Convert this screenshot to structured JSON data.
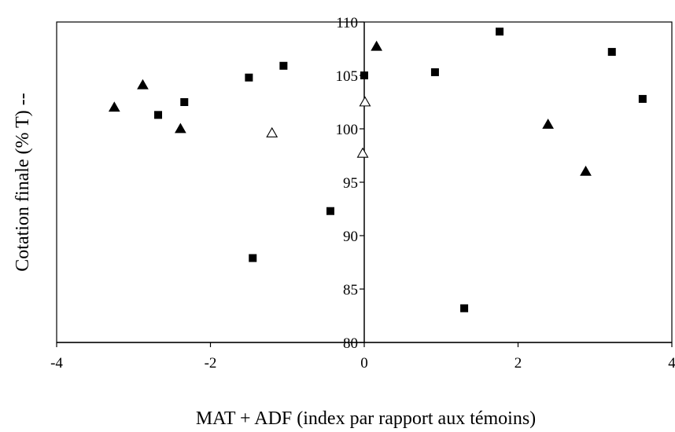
{
  "chart_data": {
    "type": "scatter",
    "xlabel": "MAT + ADF (index par rapport aux témoins)",
    "ylabel": "Cotation finale (% T)  --",
    "xlim": [
      -4,
      4
    ],
    "ylim": [
      80,
      110
    ],
    "x_ticks": [
      -4,
      -2,
      0,
      2,
      4
    ],
    "y_ticks": [
      80,
      85,
      90,
      95,
      100,
      105,
      110
    ],
    "grid": false,
    "legend": "none",
    "series": [
      {
        "marker": "square-filled",
        "color": "#000000",
        "points": [
          {
            "x": -2.68,
            "y": 101.3
          },
          {
            "x": -2.34,
            "y": 102.5
          },
          {
            "x": -1.5,
            "y": 104.8
          },
          {
            "x": -1.05,
            "y": 105.9
          },
          {
            "x": -1.45,
            "y": 87.9
          },
          {
            "x": -0.44,
            "y": 92.3
          },
          {
            "x": 0.0,
            "y": 105.0
          },
          {
            "x": 0.92,
            "y": 105.3
          },
          {
            "x": 1.3,
            "y": 83.2
          },
          {
            "x": 1.76,
            "y": 109.1
          },
          {
            "x": 3.22,
            "y": 107.2
          },
          {
            "x": 3.62,
            "y": 102.8
          }
        ]
      },
      {
        "marker": "triangle-filled",
        "color": "#000000",
        "points": [
          {
            "x": -3.25,
            "y": 102.0
          },
          {
            "x": -2.88,
            "y": 104.1
          },
          {
            "x": -2.39,
            "y": 100.0
          },
          {
            "x": 0.16,
            "y": 107.7
          },
          {
            "x": 2.39,
            "y": 100.4
          },
          {
            "x": 2.88,
            "y": 96.0
          }
        ]
      },
      {
        "marker": "triangle-open",
        "color": "#000000",
        "points": [
          {
            "x": -1.2,
            "y": 99.6
          },
          {
            "x": 0.01,
            "y": 102.5
          },
          {
            "x": -0.02,
            "y": 97.7
          }
        ]
      }
    ]
  }
}
